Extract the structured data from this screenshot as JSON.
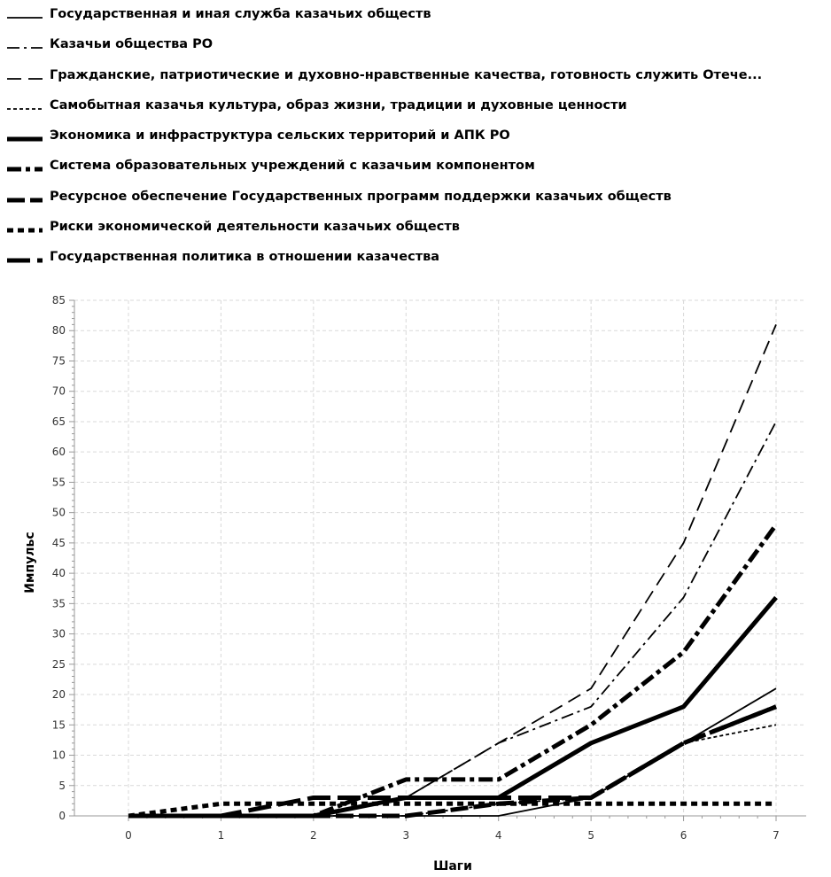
{
  "chart_data": {
    "type": "line",
    "xlabel": "Шаги",
    "ylabel": "Импульс",
    "xlim": [
      0,
      7
    ],
    "ylim": [
      0,
      85
    ],
    "x_ticks": [
      0,
      1,
      2,
      3,
      4,
      5,
      6,
      7
    ],
    "y_ticks": [
      0,
      5,
      10,
      15,
      20,
      25,
      30,
      35,
      40,
      45,
      50,
      55,
      60,
      65,
      70,
      75,
      80,
      85
    ],
    "grid": true,
    "legend_position": "top",
    "x": [
      0,
      1,
      2,
      3,
      4,
      5,
      6,
      7
    ],
    "series": [
      {
        "name": "Государственная и иная служба казачьих обществ",
        "values": [
          0,
          0,
          0,
          0,
          0,
          3,
          12,
          21
        ],
        "style": "thin-solid"
      },
      {
        "name": "Казачьи общества РО",
        "values": [
          0,
          0,
          0,
          3,
          12,
          18,
          36,
          65
        ],
        "style": "thin-dashdot"
      },
      {
        "name": "Гражданские, патриотические и духовно-нравственные качества, готовность служить Отече...",
        "values": [
          0,
          0,
          0,
          3,
          12,
          21,
          45,
          81
        ],
        "style": "thin-dash"
      },
      {
        "name": "Самобытная казачья культура, образ жизни, традиции и духовные ценности",
        "values": [
          0,
          0,
          0,
          0,
          2,
          3,
          12,
          15
        ],
        "style": "thin-dotted"
      },
      {
        "name": "Экономика и инфраструктура сельских территорий и АПК РО",
        "values": [
          0,
          0,
          0,
          3,
          3,
          12,
          18,
          36
        ],
        "style": "thick-solid"
      },
      {
        "name": "Система образовательных учреждений с казачьим компонентом",
        "values": [
          0,
          0,
          0,
          6,
          6,
          15,
          27,
          48
        ],
        "style": "thick-dashdot"
      },
      {
        "name": "Ресурсное обеспечение  Государственных программ поддержки казачьих обществ",
        "values": [
          0,
          0,
          0,
          0,
          2,
          3,
          12,
          18
        ],
        "style": "thick-dash"
      },
      {
        "name": "Риски экономической деятельности казачьих обществ",
        "values": [
          0,
          2,
          2,
          2,
          2,
          2,
          2,
          2
        ],
        "style": "thick-dotted"
      },
      {
        "name": "Государственная политика в отношении казачества",
        "values": [
          0,
          0,
          3,
          3,
          3,
          3,
          12,
          18
        ],
        "style": "thick-longdash"
      }
    ]
  }
}
